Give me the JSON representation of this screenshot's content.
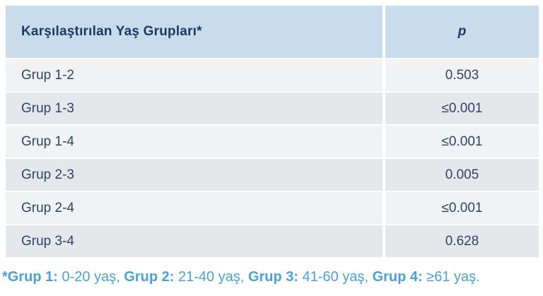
{
  "table": {
    "header": {
      "group_column_label": "Karşılaştırılan Yaş Grupları*",
      "p_column_label": "p"
    },
    "rows": [
      {
        "group": "Grup 1-2",
        "p": "0.503"
      },
      {
        "group": "Grup 1-3",
        "p": "≤0.001"
      },
      {
        "group": "Grup 1-4",
        "p": "≤0.001"
      },
      {
        "group": "Grup 2-3",
        "p": "0.005"
      },
      {
        "group": "Grup 2-4",
        "p": "≤0.001"
      },
      {
        "group": "Grup 3-4",
        "p": "0.628"
      }
    ]
  },
  "footnote": {
    "marker": "*",
    "segments": [
      {
        "label": "Grup 1:",
        "value": " 0-20 yaş, "
      },
      {
        "label": "Grup 2:",
        "value": " 21-40 yaş, "
      },
      {
        "label": "Grup 3:",
        "value": " 41-60 yaş, "
      },
      {
        "label": "Grup 4:",
        "value": " ≥61 yaş."
      }
    ]
  },
  "colors": {
    "header_bg": "#c9dcec",
    "row_light_bg": "#f1f2f4",
    "row_dark_bg": "#e6e7ea",
    "table_text": "#2e4468",
    "header_text": "#1d3a66",
    "footnote_text": "#4ba1cf"
  },
  "chart_data": {
    "type": "table",
    "title": "Karşılaştırılan Yaş Grupları*",
    "columns": [
      "Karşılaştırılan Yaş Grupları*",
      "p"
    ],
    "rows": [
      [
        "Grup 1-2",
        "0.503"
      ],
      [
        "Grup 1-3",
        "≤0.001"
      ],
      [
        "Grup 1-4",
        "≤0.001"
      ],
      [
        "Grup 2-3",
        "0.005"
      ],
      [
        "Grup 2-4",
        "≤0.001"
      ],
      [
        "Grup 3-4",
        "0.628"
      ]
    ],
    "footnote": "*Grup 1: 0-20 yaş, Grup 2: 21-40 yaş, Grup 3: 41-60 yaş, Grup 4: ≥61 yaş."
  }
}
